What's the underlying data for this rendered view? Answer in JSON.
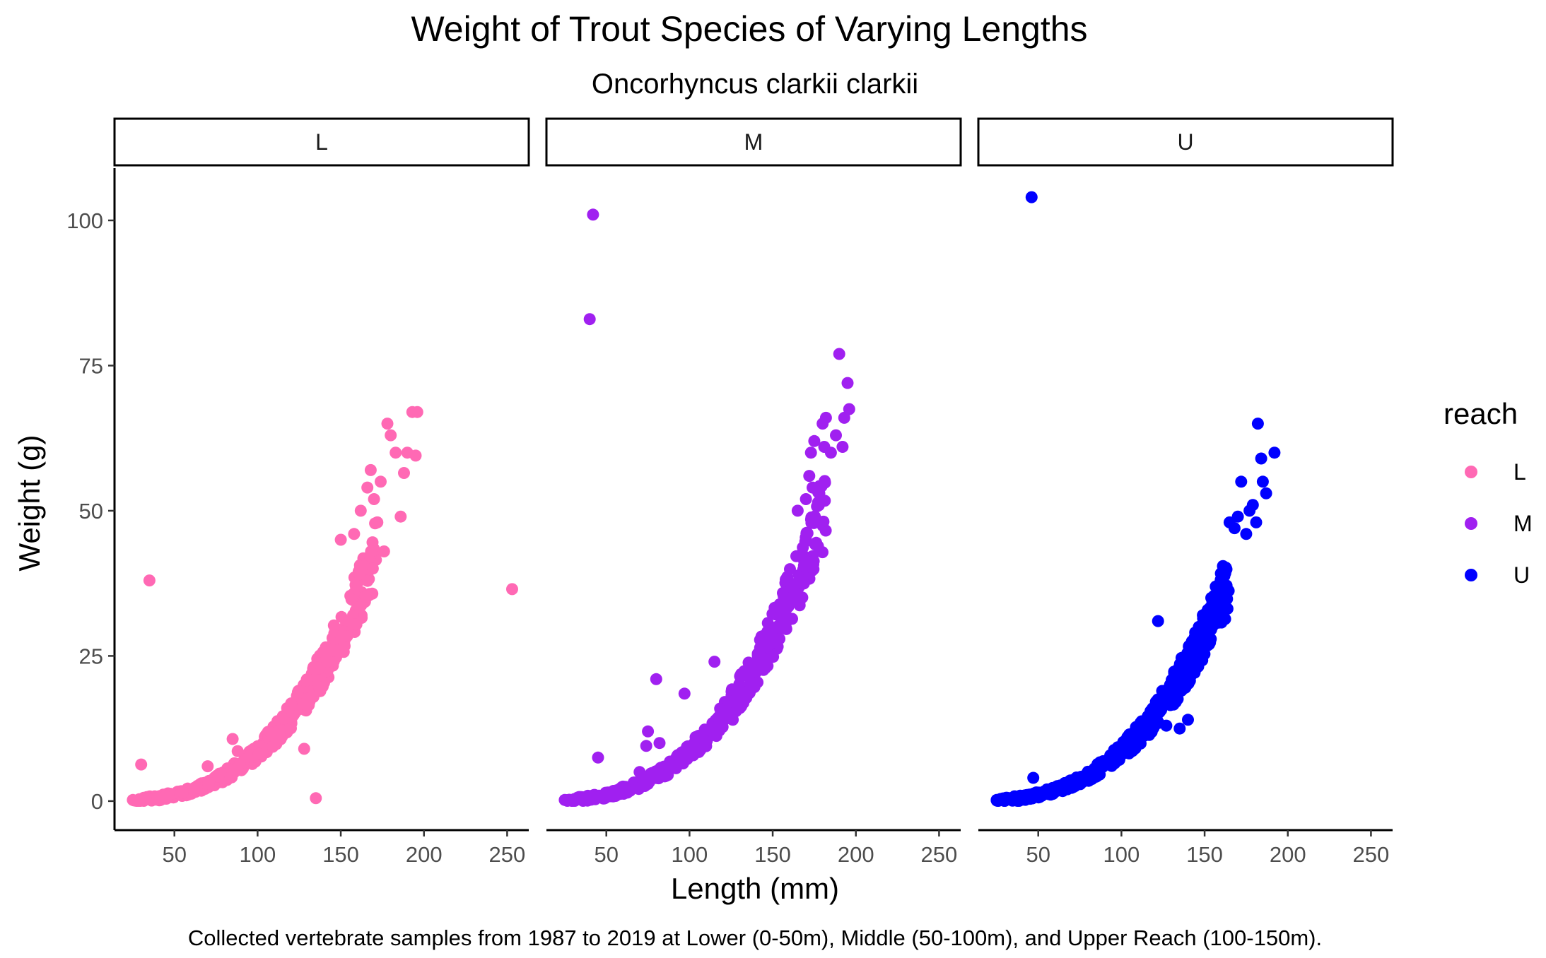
{
  "chart_data": {
    "type": "scatter",
    "title": "Weight of Trout Species of Varying Lengths",
    "subtitle": "Oncorhyncus clarkii clarkii",
    "xlabel": "Length (mm)",
    "ylabel": "Weight (g)",
    "caption": "Collected vertebrate samples from 1987 to 2019 at Lower (0-50m), Middle (50-100m), and Upper Reach (100-150m).",
    "xlim": [
      14,
      263
    ],
    "ylim": [
      -5,
      109
    ],
    "x_ticks": [
      50,
      100,
      150,
      200,
      250
    ],
    "y_ticks": [
      0,
      25,
      50,
      75,
      100
    ],
    "grid": false,
    "facet_variable": "reach",
    "legend": {
      "title": "reach",
      "position": "right",
      "entries": [
        {
          "label": "L",
          "color": "#FF69B4"
        },
        {
          "label": "M",
          "color": "#A020F0"
        },
        {
          "label": "U",
          "color": "#0000FF"
        }
      ]
    },
    "panels": [
      {
        "name": "L",
        "color": "#FF69B4",
        "trend": {
          "model": "weight = a * length^3",
          "a": 8.52e-06,
          "x_range": [
            25,
            172
          ]
        },
        "points": [
          {
            "x": 25,
            "y": 0.2
          },
          {
            "x": 30,
            "y": 6.3
          },
          {
            "x": 35,
            "y": 38.0
          },
          {
            "x": 40,
            "y": 0.6
          },
          {
            "x": 45,
            "y": 0.8
          },
          {
            "x": 55,
            "y": 1.5
          },
          {
            "x": 70,
            "y": 6.0
          },
          {
            "x": 85,
            "y": 10.7
          },
          {
            "x": 88,
            "y": 8.6
          },
          {
            "x": 128,
            "y": 9.0
          },
          {
            "x": 135,
            "y": 0.5
          },
          {
            "x": 142,
            "y": 24.0
          },
          {
            "x": 150,
            "y": 45.0
          },
          {
            "x": 158,
            "y": 46.0
          },
          {
            "x": 162,
            "y": 50.0
          },
          {
            "x": 166,
            "y": 54.0
          },
          {
            "x": 168,
            "y": 57.0
          },
          {
            "x": 170,
            "y": 52.0
          },
          {
            "x": 172,
            "y": 48.0
          },
          {
            "x": 174,
            "y": 55.0
          },
          {
            "x": 176,
            "y": 43.0
          },
          {
            "x": 178,
            "y": 65.0
          },
          {
            "x": 180,
            "y": 63.0
          },
          {
            "x": 183,
            "y": 60.0
          },
          {
            "x": 186,
            "y": 49.0
          },
          {
            "x": 188,
            "y": 56.5
          },
          {
            "x": 190,
            "y": 60.0
          },
          {
            "x": 193,
            "y": 67.0
          },
          {
            "x": 195,
            "y": 59.5
          },
          {
            "x": 196,
            "y": 67.0
          },
          {
            "x": 253,
            "y": 36.5
          }
        ]
      },
      {
        "name": "M",
        "color": "#A020F0",
        "trend": {
          "model": "weight = a * length^3",
          "a": 8.52e-06,
          "x_range": [
            25,
            182
          ]
        },
        "points": [
          {
            "x": 25,
            "y": 0.2
          },
          {
            "x": 35,
            "y": 0.5
          },
          {
            "x": 40,
            "y": 83.0
          },
          {
            "x": 42,
            "y": 101.0
          },
          {
            "x": 45,
            "y": 7.5
          },
          {
            "x": 60,
            "y": 2.5
          },
          {
            "x": 70,
            "y": 5.0
          },
          {
            "x": 74,
            "y": 9.5
          },
          {
            "x": 75,
            "y": 12.0
          },
          {
            "x": 80,
            "y": 21.0
          },
          {
            "x": 82,
            "y": 10.0
          },
          {
            "x": 97,
            "y": 18.5
          },
          {
            "x": 115,
            "y": 24.0
          },
          {
            "x": 126,
            "y": 14.0
          },
          {
            "x": 165,
            "y": 50.0
          },
          {
            "x": 170,
            "y": 52.0
          },
          {
            "x": 172,
            "y": 56.0
          },
          {
            "x": 173,
            "y": 60.0
          },
          {
            "x": 174,
            "y": 54.0
          },
          {
            "x": 175,
            "y": 62.0
          },
          {
            "x": 178,
            "y": 53.0
          },
          {
            "x": 180,
            "y": 65.0
          },
          {
            "x": 181,
            "y": 61.0
          },
          {
            "x": 182,
            "y": 66.0
          },
          {
            "x": 185,
            "y": 60.0
          },
          {
            "x": 188,
            "y": 63.0
          },
          {
            "x": 190,
            "y": 77.0
          },
          {
            "x": 192,
            "y": 61.0
          },
          {
            "x": 193,
            "y": 66.0
          },
          {
            "x": 195,
            "y": 72.0
          },
          {
            "x": 196,
            "y": 67.5
          }
        ]
      },
      {
        "name": "U",
        "color": "#0000FF",
        "trend": {
          "model": "weight = a * length^3",
          "a": 8.52e-06,
          "x_range": [
            25,
            165
          ]
        },
        "points": [
          {
            "x": 25,
            "y": 0.2
          },
          {
            "x": 46,
            "y": 104.0
          },
          {
            "x": 47,
            "y": 4.0
          },
          {
            "x": 122,
            "y": 31.0
          },
          {
            "x": 127,
            "y": 13.0
          },
          {
            "x": 135,
            "y": 12.5
          },
          {
            "x": 140,
            "y": 14.0
          },
          {
            "x": 165,
            "y": 48.0
          },
          {
            "x": 168,
            "y": 47.0
          },
          {
            "x": 170,
            "y": 49.0
          },
          {
            "x": 172,
            "y": 55.0
          },
          {
            "x": 175,
            "y": 46.0
          },
          {
            "x": 177,
            "y": 50.0
          },
          {
            "x": 179,
            "y": 51.0
          },
          {
            "x": 181,
            "y": 48.0
          },
          {
            "x": 182,
            "y": 65.0
          },
          {
            "x": 184,
            "y": 59.0
          },
          {
            "x": 185,
            "y": 55.0
          },
          {
            "x": 187,
            "y": 53.0
          },
          {
            "x": 192,
            "y": 60.0
          }
        ]
      }
    ]
  }
}
